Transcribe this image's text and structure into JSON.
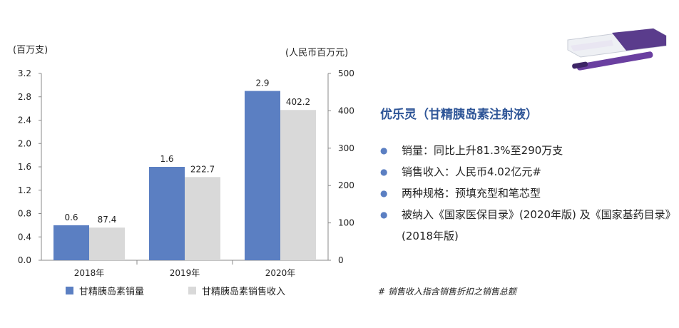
{
  "chart_data": {
    "type": "bar",
    "categories": [
      "2018年",
      "2019年",
      "2020年"
    ],
    "series": [
      {
        "name": "甘精胰岛素销量",
        "axis": "left",
        "values": [
          0.6,
          1.6,
          2.9
        ],
        "color": "#5b7fc2",
        "labels": [
          "0.6",
          "1.6",
          "2.9"
        ]
      },
      {
        "name": "甘精胰岛素销售收入",
        "axis": "right",
        "values": [
          87.4,
          222.7,
          402.2
        ],
        "color": "#d9d9d9",
        "labels": [
          "87.4",
          "222.7",
          "402.2"
        ]
      }
    ],
    "left_axis": {
      "unit": "(百万支)",
      "ylim": [
        0,
        3.2
      ],
      "ticks": [
        "0.0",
        "0.4",
        "0.8",
        "1.2",
        "1.6",
        "2.0",
        "2.4",
        "2.8",
        "3.2"
      ]
    },
    "right_axis": {
      "unit": "(人民币百万元)",
      "ylim": [
        0,
        500
      ],
      "ticks": [
        "0",
        "100",
        "200",
        "300",
        "400",
        "500"
      ]
    },
    "grid": false,
    "legend_position": "bottom"
  },
  "product": {
    "image": "insulin-pen-product-image",
    "title": "优乐灵（甘精胰岛素注射液）",
    "bullets": [
      "销量：同比上升81.3%至290万支",
      "销售收入：人民币4.02亿元#",
      "两种规格：预填充型和笔芯型",
      "被纳入《国家医保目录》(2020年版) 及《国家基药目录》(2018年版)"
    ],
    "bullet_icon": "bullet-dot-icon"
  },
  "footnote": "# 销售收入指含销售折扣之销售总额",
  "colors": {
    "accent": "#2e5597",
    "bar_blue": "#5b7fc2",
    "bar_gray": "#d9d9d9"
  }
}
